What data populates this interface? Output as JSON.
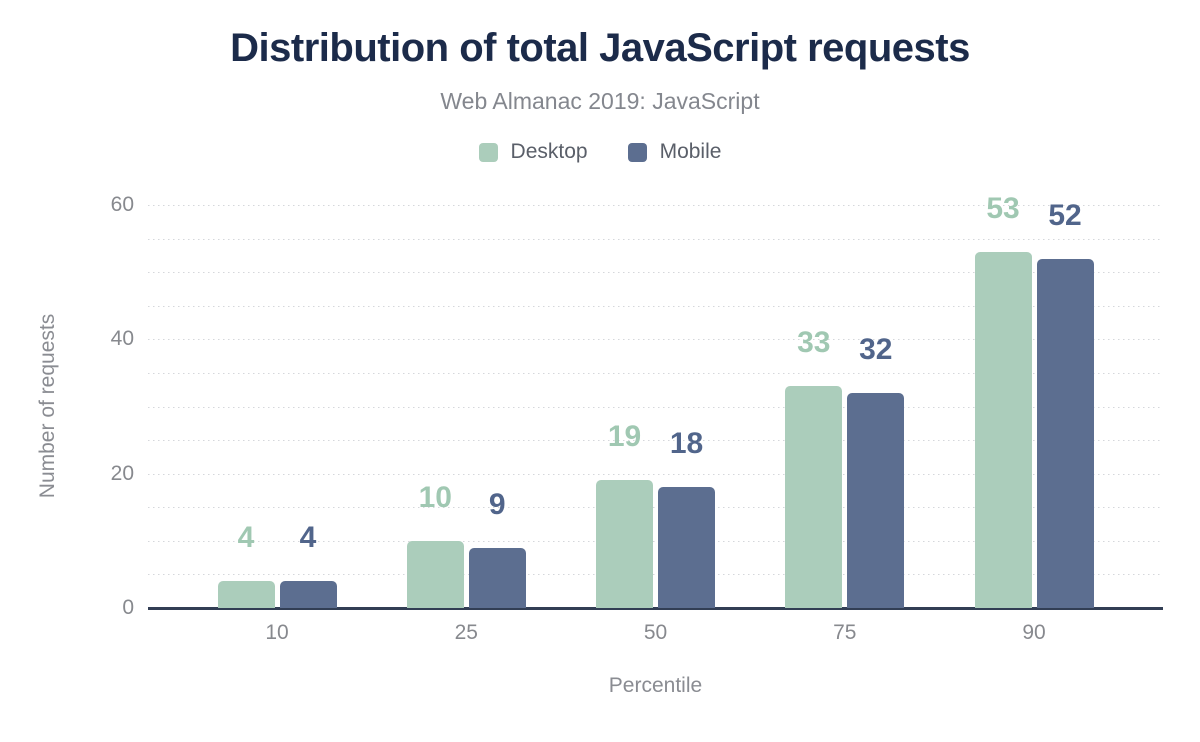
{
  "header": {
    "title": "Distribution of total JavaScript requests",
    "subtitle": "Web Almanac 2019: JavaScript"
  },
  "legend": {
    "items": [
      {
        "label": "Desktop",
        "color": "#abcdbb"
      },
      {
        "label": "Mobile",
        "color": "#5c6e90"
      }
    ]
  },
  "chart_data": {
    "type": "bar",
    "title": "Distribution of total JavaScript requests",
    "subtitle": "Web Almanac 2019: JavaScript",
    "categories": [
      10,
      25,
      50,
      75,
      90
    ],
    "series": [
      {
        "name": "Desktop",
        "values": [
          4,
          10,
          19,
          33,
          53
        ],
        "color": "#abcdbb",
        "label_color": "#a0c8b2"
      },
      {
        "name": "Mobile",
        "values": [
          4,
          9,
          18,
          32,
          52
        ],
        "color": "#5c6e90",
        "label_color": "#51658b"
      }
    ],
    "xlabel": "Percentile",
    "ylabel": "Number of requests",
    "ylim": [
      0,
      60
    ],
    "yticks": [
      0,
      20,
      40,
      60
    ],
    "grid": {
      "show": true,
      "interval": 5,
      "style": "dotted"
    },
    "legend_position": "top",
    "data_labels": true
  },
  "colors": {
    "title": "#1c2b4a",
    "subtitle": "#84878e",
    "axis_line": "#323e54",
    "tick_text": "#87898e",
    "axis_title_text": "#8a8c92",
    "gridline": "#d5d7db",
    "background": "#ffffff"
  }
}
